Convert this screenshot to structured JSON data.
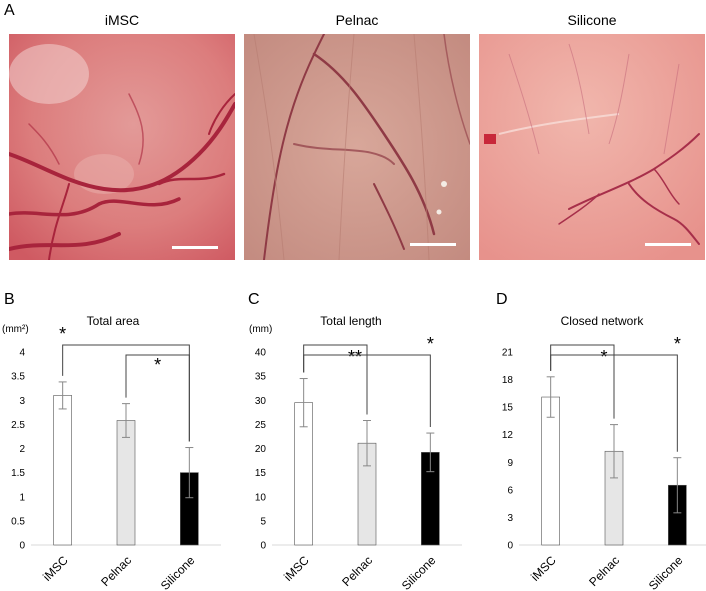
{
  "panel_labels": [
    "A",
    "B",
    "C",
    "D"
  ],
  "photos": [
    {
      "title": "iMSC"
    },
    {
      "title": "Pelnac"
    },
    {
      "title": "Silicone"
    }
  ],
  "colors": {
    "bar_iMSC": "#ffffff",
    "bar_Pelnac": "#e6e6e6",
    "bar_Silicone": "#000000",
    "axis": "#d9d9d9"
  },
  "chart_data": [
    {
      "type": "bar",
      "panel": "B",
      "title": "Total area",
      "unit": "(mm²)",
      "categories": [
        "iMSC",
        "Pelnac",
        "Silicone"
      ],
      "values": [
        3.1,
        2.58,
        1.5
      ],
      "errors": [
        0.28,
        0.35,
        0.52
      ],
      "ylim": [
        0,
        4
      ],
      "yticks": [
        "0",
        "0.5",
        "1",
        "1.5",
        "2",
        "2.5",
        "3",
        "3.5",
        "4"
      ],
      "significance": [
        {
          "from": "iMSC",
          "to": "Silicone",
          "label": "*"
        },
        {
          "from": "Pelnac",
          "to": "Silicone",
          "label": "*"
        }
      ]
    },
    {
      "type": "bar",
      "panel": "C",
      "title": "Total length",
      "unit": "(mm)",
      "categories": [
        "iMSC",
        "Pelnac",
        "Silicone"
      ],
      "values": [
        29.5,
        21.1,
        19.2
      ],
      "errors": [
        5.0,
        4.7,
        4.0
      ],
      "ylim": [
        0,
        40
      ],
      "yticks": [
        "0",
        "5",
        "10",
        "15",
        "20",
        "25",
        "30",
        "35",
        "40"
      ],
      "significance": [
        {
          "from": "iMSC",
          "to": "Pelnac",
          "label": "**"
        },
        {
          "from": "iMSC",
          "to": "Silicone",
          "label": "*"
        }
      ]
    },
    {
      "type": "bar",
      "panel": "D",
      "title": "Closed network",
      "unit": "",
      "categories": [
        "iMSC",
        "Pelnac",
        "Silicone"
      ],
      "values": [
        16.1,
        10.2,
        6.5
      ],
      "errors": [
        2.2,
        2.9,
        3.0
      ],
      "ylim": [
        0,
        21
      ],
      "yticks": [
        "0",
        "3",
        "6",
        "9",
        "12",
        "15",
        "18",
        "21"
      ],
      "significance": [
        {
          "from": "iMSC",
          "to": "Pelnac",
          "label": "*"
        },
        {
          "from": "iMSC",
          "to": "Silicone",
          "label": "*"
        }
      ]
    }
  ]
}
